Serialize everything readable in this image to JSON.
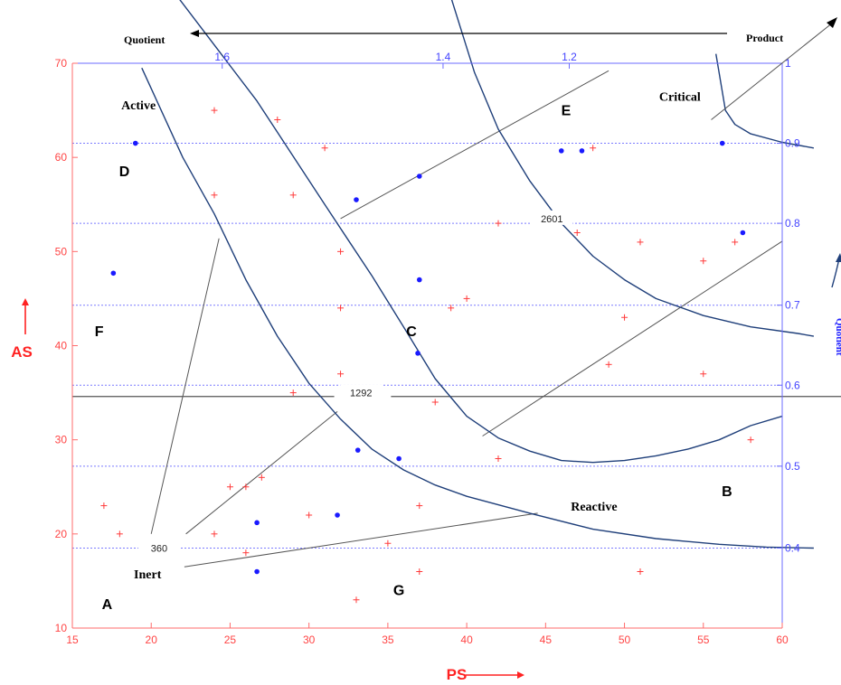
{
  "chart_data": {
    "type": "scatter",
    "x_axis": {
      "label": "PS",
      "range": [
        15,
        60
      ],
      "ticks": [
        15,
        20,
        25,
        30,
        35,
        40,
        45,
        50,
        55,
        60
      ]
    },
    "y_axis": {
      "label": "AS",
      "range": [
        10,
        70
      ],
      "ticks": [
        10,
        20,
        30,
        40,
        50,
        60,
        70
      ]
    },
    "right_axis": {
      "label": "Quotient",
      "ticks": [
        {
          "label": "1",
          "as": 70
        },
        {
          "label": "0.9",
          "as": 61.5
        },
        {
          "label": "0.8",
          "as": 53
        },
        {
          "label": "0.7",
          "as": 44.3
        },
        {
          "label": "0.6",
          "as": 35.8
        },
        {
          "label": "0.5",
          "as": 27.2
        },
        {
          "label": "0.4",
          "as": 18.5
        }
      ]
    },
    "top_axis": {
      "ticks": [
        {
          "label": "1.6",
          "ps": 24.5
        },
        {
          "label": "1.4",
          "ps": 38.5
        },
        {
          "label": "1.2",
          "ps": 46.5
        }
      ]
    },
    "annotations": {
      "quotient_arrow": "Quotient",
      "product_arrow": "Product",
      "contour_labels": [
        {
          "text": "360",
          "ps": 20.5,
          "as": 18.5
        },
        {
          "text": "1292",
          "ps": 33.3,
          "as": 35
        },
        {
          "text": "2601",
          "ps": 45.4,
          "as": 53.5
        }
      ],
      "regions": [
        {
          "text": "A",
          "ps": 17.2,
          "as": 12
        },
        {
          "text": "B",
          "ps": 56.5,
          "as": 24
        },
        {
          "text": "C",
          "ps": 36.5,
          "as": 41
        },
        {
          "text": "D",
          "ps": 18.3,
          "as": 58
        },
        {
          "text": "E",
          "ps": 46.3,
          "as": 64.5
        },
        {
          "text": "F",
          "ps": 16.7,
          "as": 41
        },
        {
          "text": "G",
          "ps": 35.7,
          "as": 13.5
        }
      ],
      "zones": [
        {
          "text": "Active",
          "ps": 18.1,
          "as": 65.1
        },
        {
          "text": "Inert",
          "ps": 18.9,
          "as": 15.3
        },
        {
          "text": "Reactive",
          "ps": 46.6,
          "as": 22.5
        },
        {
          "text": "Critical",
          "ps": 52.2,
          "as": 66
        }
      ]
    },
    "series": [
      {
        "marker": "plus",
        "color": "#ff3b3b",
        "points": [
          [
            24,
            65
          ],
          [
            28,
            64
          ],
          [
            31,
            61
          ],
          [
            24,
            56
          ],
          [
            29,
            56
          ],
          [
            32,
            50
          ],
          [
            42,
            53
          ],
          [
            47,
            52
          ],
          [
            51,
            51
          ],
          [
            57,
            51
          ],
          [
            55,
            49
          ],
          [
            32,
            44
          ],
          [
            39,
            44
          ],
          [
            40,
            45
          ],
          [
            50,
            43
          ],
          [
            32,
            37
          ],
          [
            49,
            38
          ],
          [
            55,
            37
          ],
          [
            29,
            35
          ],
          [
            38,
            34
          ],
          [
            58,
            30
          ],
          [
            42,
            28
          ],
          [
            17,
            23
          ],
          [
            18,
            20
          ],
          [
            24,
            20
          ],
          [
            25,
            25
          ],
          [
            26,
            25
          ],
          [
            27,
            26
          ],
          [
            26,
            18
          ],
          [
            30,
            22
          ],
          [
            35,
            19
          ],
          [
            37,
            23
          ],
          [
            37,
            16
          ],
          [
            33,
            13
          ],
          [
            51,
            16
          ],
          [
            48,
            61
          ]
        ]
      },
      {
        "marker": "dot",
        "color": "#1a1aff",
        "points": [
          [
            19,
            61.5
          ],
          [
            37,
            58
          ],
          [
            33,
            55.5
          ],
          [
            46,
            60.7
          ],
          [
            47.3,
            60.7
          ],
          [
            56.2,
            61.5
          ],
          [
            17.6,
            47.7
          ],
          [
            37,
            47
          ],
          [
            57.5,
            52
          ],
          [
            36.9,
            39.2
          ],
          [
            33.1,
            28.9
          ],
          [
            35.7,
            28
          ],
          [
            26.7,
            21.2
          ],
          [
            31.8,
            22
          ],
          [
            26.7,
            16
          ]
        ]
      }
    ],
    "curves": {
      "color": "#1f3f7a",
      "ps_isolines": [
        {
          "ps": 24.5,
          "points": [
            [
              19.4,
              69.5
            ],
            [
              22,
              60
            ],
            [
              24,
              54
            ],
            [
              26,
              47
            ],
            [
              28,
              41
            ],
            [
              30,
              36
            ],
            [
              32,
              32.2
            ],
            [
              34,
              29
            ],
            [
              36,
              26.8
            ],
            [
              38,
              25.2
            ],
            [
              40,
              24
            ],
            [
              44,
              22.2
            ],
            [
              48,
              20.5
            ],
            [
              52,
              19.5
            ],
            [
              56,
              18.9
            ],
            [
              59,
              18.6
            ],
            [
              62,
              18.5
            ]
          ]
        },
        {
          "ps": 38.5,
          "points": [
            [
              21.7,
              77
            ],
            [
              26.7,
              66
            ],
            [
              31,
              55
            ],
            [
              34,
              47.4
            ],
            [
              36,
              42
            ],
            [
              38,
              36.5
            ],
            [
              40,
              32.5
            ],
            [
              42,
              30.2
            ],
            [
              44,
              28.8
            ],
            [
              46,
              27.8
            ],
            [
              48,
              27.6
            ],
            [
              50,
              27.8
            ],
            [
              52,
              28.3
            ],
            [
              54,
              29
            ],
            [
              56,
              30
            ],
            [
              58,
              31.5
            ],
            [
              60,
              32.5
            ]
          ]
        },
        {
          "ps": 46.5,
          "points": [
            [
              39,
              77
            ],
            [
              40.5,
              69
            ],
            [
              42,
              63
            ],
            [
              44,
              57.5
            ],
            [
              46,
              53
            ],
            [
              48,
              49.5
            ],
            [
              50,
              47
            ],
            [
              52,
              45
            ],
            [
              55,
              43.2
            ],
            [
              58,
              42
            ],
            [
              61,
              41.3
            ],
            [
              62,
              41
            ]
          ]
        },
        {
          "ps": 56,
          "points": [
            [
              55.8,
              71
            ],
            [
              56,
              69
            ],
            [
              56.2,
              67
            ],
            [
              56.4,
              65
            ],
            [
              57,
              63.5
            ],
            [
              58,
              62.5
            ],
            [
              60,
              61.6
            ],
            [
              62,
              61
            ]
          ]
        }
      ]
    },
    "lines": {
      "color": "#555555",
      "contour_360": [
        [
          [
            22.1,
            16.5
          ],
          [
            44.5,
            22.2
          ]
        ],
        [
          [
            20,
            20
          ],
          [
            24.3,
            51.4
          ]
        ],
        [
          [
            22.2,
            20
          ],
          [
            31.8,
            33
          ]
        ]
      ],
      "contour_1292": [
        [
          15,
          34.6
        ],
        [
          62,
          34.6
        ]
      ],
      "contour_2601": [
        [
          [
            32,
            53.5
          ],
          [
            49,
            69.2
          ]
        ],
        [
          [
            41,
            30.4
          ],
          [
            60,
            51.1
          ]
        ]
      ],
      "product_line": [
        [
          55.5,
          64
        ],
        [
          62,
          73
        ]
      ]
    },
    "grid": "dotted horizontal at right-axis ticks"
  },
  "labels": {
    "quotient_top": "Quotient",
    "product_top": "Product",
    "quotient_right": "Quotient",
    "as_label": "AS",
    "ps_label": "PS"
  }
}
